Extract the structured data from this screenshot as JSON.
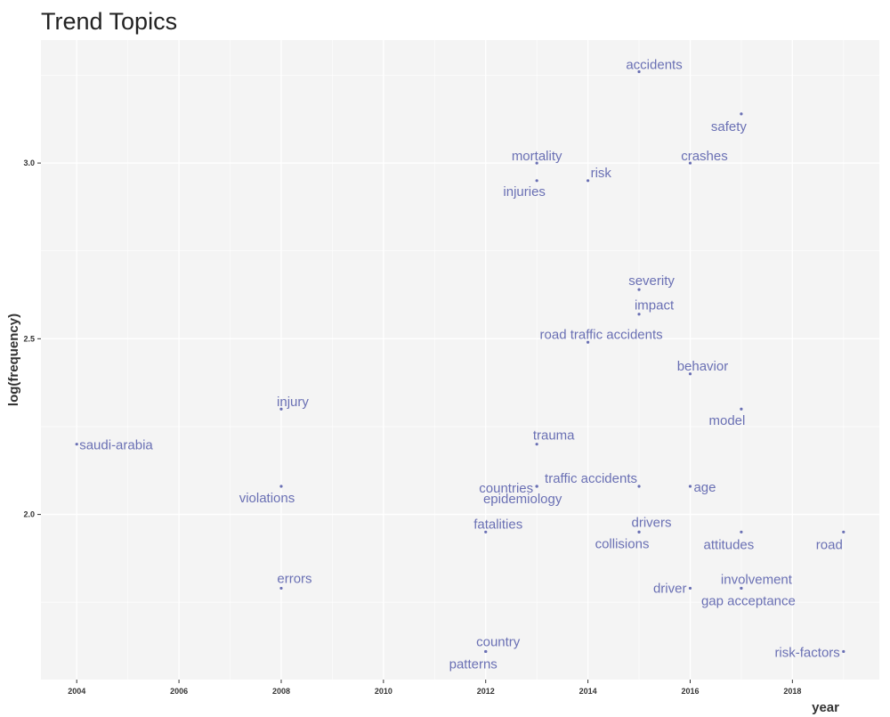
{
  "chart_data": {
    "type": "scatter",
    "title": "Trend Topics",
    "xlabel": "year",
    "ylabel": "log(frequency)",
    "xlim": [
      2003.3,
      2019.7
    ],
    "ylim": [
      1.53,
      3.35
    ],
    "x_ticks": [
      "2004",
      "2006",
      "2008",
      "2010",
      "2012",
      "2014",
      "2016",
      "2018"
    ],
    "y_ticks": [
      "2.0",
      "2.5",
      "3.0"
    ],
    "grid": true,
    "point_color": "#6a70b4",
    "label_color": "#6a70b4",
    "panel_color": "#f4f4f4",
    "points": [
      {
        "label": "accidents",
        "x": 2015,
        "y": 3.26
      },
      {
        "label": "safety",
        "x": 2017,
        "y": 3.14
      },
      {
        "label": "mortality",
        "x": 2013,
        "y": 3.0
      },
      {
        "label": "crashes",
        "x": 2016,
        "y": 3.0
      },
      {
        "label": "risk",
        "x": 2014,
        "y": 2.95
      },
      {
        "label": "injuries",
        "x": 2013,
        "y": 2.95
      },
      {
        "label": "severity",
        "x": 2015,
        "y": 2.64
      },
      {
        "label": "impact",
        "x": 2015,
        "y": 2.57
      },
      {
        "label": "road traffic accidents",
        "x": 2014,
        "y": 2.49
      },
      {
        "label": "behavior",
        "x": 2016,
        "y": 2.4
      },
      {
        "label": "injury",
        "x": 2008,
        "y": 2.3
      },
      {
        "label": "model",
        "x": 2017,
        "y": 2.3
      },
      {
        "label": "saudi-arabia",
        "x": 2004,
        "y": 2.2
      },
      {
        "label": "trauma",
        "x": 2013,
        "y": 2.2
      },
      {
        "label": "epidemiology",
        "x": 2013,
        "y": 2.08
      },
      {
        "label": "traffic accidents",
        "x": 2015,
        "y": 2.08
      },
      {
        "label": "countries",
        "x": 2013,
        "y": 2.08
      },
      {
        "label": "age",
        "x": 2016,
        "y": 2.08
      },
      {
        "label": "violations",
        "x": 2008,
        "y": 2.08
      },
      {
        "label": "fatalities",
        "x": 2012,
        "y": 1.95
      },
      {
        "label": "drivers",
        "x": 2015,
        "y": 1.95
      },
      {
        "label": "collisions",
        "x": 2015,
        "y": 1.95
      },
      {
        "label": "attitudes",
        "x": 2017,
        "y": 1.95
      },
      {
        "label": "road",
        "x": 2019,
        "y": 1.95
      },
      {
        "label": "errors",
        "x": 2008,
        "y": 1.79
      },
      {
        "label": "driver",
        "x": 2016,
        "y": 1.79
      },
      {
        "label": "involvement",
        "x": 2017,
        "y": 1.79
      },
      {
        "label": "gap acceptance",
        "x": 2017,
        "y": 1.79
      },
      {
        "label": "country",
        "x": 2012,
        "y": 1.61
      },
      {
        "label": "patterns",
        "x": 2012,
        "y": 1.61
      },
      {
        "label": "risk-factors",
        "x": 2019,
        "y": 1.61
      }
    ]
  }
}
